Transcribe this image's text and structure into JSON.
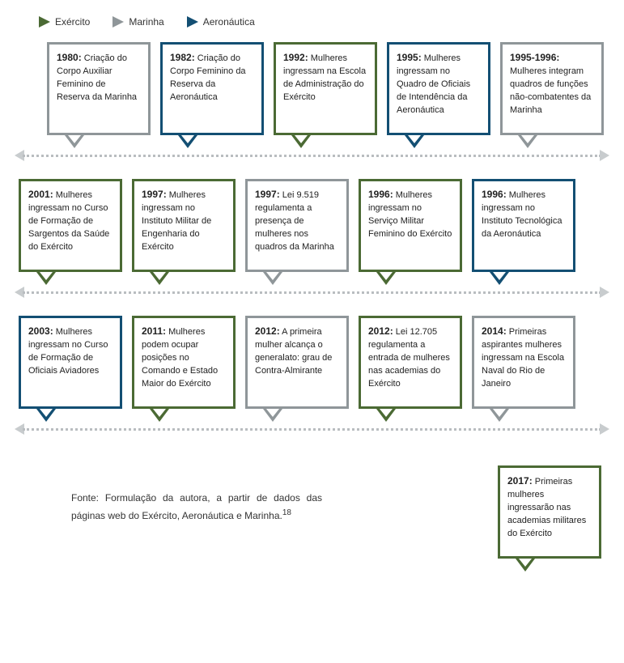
{
  "colors": {
    "exercito": "#4b6a34",
    "marinha": "#8f9699",
    "aeronautica": "#134f73",
    "dotted": "#b9bdc0",
    "arrow_gray": "#c8ccce"
  },
  "legend": [
    {
      "label": "Exército",
      "color": "#4b6a34"
    },
    {
      "label": "Marinha",
      "color": "#8f9699"
    },
    {
      "label": "Aeronáutica",
      "color": "#134f73"
    }
  ],
  "rows": {
    "r1": [
      {
        "year": "1980:",
        "text": " Criação do Corpo Auxiliar Feminino de Reserva da Marinha",
        "color": "#8f9699"
      },
      {
        "year": "1982:",
        "text": " Criação do Corpo Feminino da Reserva da Aeronáutica",
        "color": "#134f73"
      },
      {
        "year": "1992:",
        "text": " Mulheres ingressam na Escola de Administração do Exército",
        "color": "#4b6a34"
      },
      {
        "year": "1995:",
        "text": " Mulheres ingressam no Quadro de Oficiais de Intendência da Aeronáutica",
        "color": "#134f73"
      },
      {
        "year": "1995-1996:",
        "text": " Mulheres integram quadros de funções não-combatentes da Marinha",
        "color": "#8f9699"
      }
    ],
    "r2": [
      {
        "year": "2001:",
        "text": " Mulheres ingressam no Curso de Formação de Sargentos da Saúde do Exército",
        "color": "#4b6a34"
      },
      {
        "year": "1997:",
        "text": " Mulheres ingressam no Instituto Militar de Engenharia do Exército",
        "color": "#4b6a34"
      },
      {
        "year": "1997:",
        "text": " Lei 9.519 regulamenta a presença de mulheres nos quadros da Marinha",
        "color": "#8f9699"
      },
      {
        "year": "1996:",
        "text": " Mulheres ingressam no Serviço Militar Feminino do Exército",
        "color": "#4b6a34"
      },
      {
        "year": "1996:",
        "text": " Mulheres ingressam no Instituto Tecnológica da Aeronáutica",
        "color": "#134f73"
      }
    ],
    "r3": [
      {
        "year": "2003:",
        "text": " Mulheres ingressam no Curso de Formação de Oficiais Aviadores",
        "color": "#134f73"
      },
      {
        "year": "2011:",
        "text": " Mulheres podem ocupar posições no Comando e Estado Maior do Exército",
        "color": "#4b6a34"
      },
      {
        "year": "2012:",
        "text": " A primeira mulher alcança o generalato: grau de Contra-Almirante",
        "color": "#8f9699"
      },
      {
        "year": "2012:",
        "text": " Lei 12.705 regulamenta a entrada de mulheres nas academias do Exército",
        "color": "#4b6a34"
      },
      {
        "year": "2014:",
        "text": " Primeiras aspirantes mulheres ingressam na Escola Naval do Rio de Janeiro",
        "color": "#8f9699"
      }
    ],
    "r4": [
      {
        "year": "2017:",
        "text": " Primeiras mulheres ingressarão nas academias militares do Exército",
        "color": "#4b6a34"
      }
    ]
  },
  "source": {
    "text": "Fonte: Formulação da autora, a partir de dados das páginas web do Exército, Aeronáutica e Marinha.",
    "sup": "18"
  }
}
